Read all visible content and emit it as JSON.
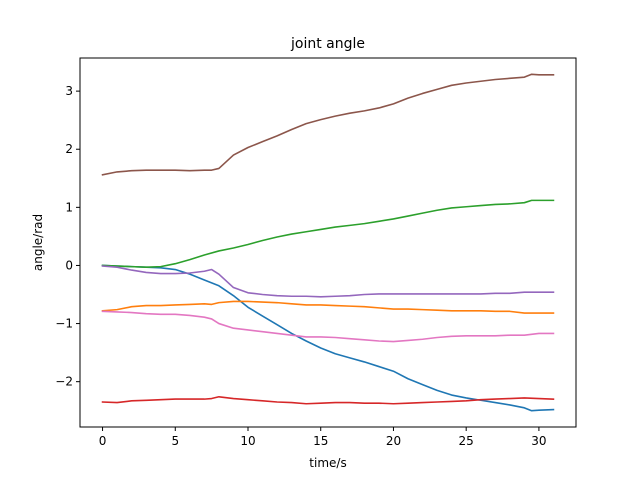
{
  "chart_data": {
    "type": "line",
    "title": "joint angle",
    "xlabel": "time/s",
    "ylabel": "angle/rad",
    "xlim": [
      -1.55,
      32.55
    ],
    "ylim": [
      -2.78,
      3.57
    ],
    "xticks": [
      0,
      5,
      10,
      15,
      20,
      25,
      30
    ],
    "yticks": [
      -2,
      -1,
      0,
      1,
      2,
      3
    ],
    "grid": false,
    "series": [
      {
        "color": "#1f77b4",
        "x": [
          0,
          1,
          2,
          3,
          4,
          5,
          6,
          7,
          8,
          9,
          10,
          11,
          12,
          13,
          14,
          15,
          16,
          17,
          18,
          19,
          20,
          21,
          22,
          23,
          24,
          25,
          26,
          27,
          28,
          29,
          29.5,
          30,
          31
        ],
        "y": [
          0.0,
          -0.01,
          -0.02,
          -0.03,
          -0.04,
          -0.07,
          -0.15,
          -0.25,
          -0.35,
          -0.52,
          -0.72,
          -0.87,
          -1.02,
          -1.17,
          -1.3,
          -1.42,
          -1.52,
          -1.59,
          -1.66,
          -1.74,
          -1.82,
          -1.95,
          -2.05,
          -2.15,
          -2.23,
          -2.28,
          -2.32,
          -2.36,
          -2.4,
          -2.45,
          -2.5,
          -2.49,
          -2.48
        ]
      },
      {
        "color": "#ff7f0e",
        "x": [
          0,
          1,
          2,
          3,
          4,
          5,
          6,
          7,
          7.5,
          8,
          9,
          10,
          11,
          12,
          13,
          14,
          15,
          16,
          17,
          18,
          19,
          20,
          21,
          22,
          23,
          24,
          25,
          26,
          27,
          28,
          29,
          30,
          31
        ],
        "y": [
          -0.78,
          -0.76,
          -0.71,
          -0.69,
          -0.69,
          -0.68,
          -0.67,
          -0.66,
          -0.67,
          -0.64,
          -0.62,
          -0.62,
          -0.63,
          -0.64,
          -0.66,
          -0.68,
          -0.68,
          -0.69,
          -0.7,
          -0.71,
          -0.73,
          -0.75,
          -0.75,
          -0.76,
          -0.77,
          -0.78,
          -0.78,
          -0.78,
          -0.79,
          -0.79,
          -0.82,
          -0.82,
          -0.82
        ]
      },
      {
        "color": "#2ca02c",
        "x": [
          0,
          1,
          2,
          3,
          4,
          5,
          6,
          7,
          8,
          9,
          10,
          11,
          12,
          13,
          14,
          15,
          16,
          17,
          18,
          19,
          20,
          21,
          22,
          23,
          24,
          25,
          26,
          27,
          28,
          29,
          29.5,
          30,
          31
        ],
        "y": [
          0.0,
          -0.01,
          -0.02,
          -0.03,
          -0.02,
          0.03,
          0.1,
          0.18,
          0.25,
          0.3,
          0.36,
          0.43,
          0.49,
          0.54,
          0.58,
          0.62,
          0.66,
          0.69,
          0.72,
          0.76,
          0.8,
          0.85,
          0.9,
          0.95,
          0.99,
          1.01,
          1.03,
          1.05,
          1.06,
          1.08,
          1.12,
          1.12,
          1.12
        ]
      },
      {
        "color": "#d62728",
        "x": [
          0,
          1,
          2,
          3,
          4,
          5,
          6,
          7,
          7.5,
          8,
          9,
          10,
          11,
          12,
          13,
          14,
          15,
          16,
          17,
          18,
          19,
          20,
          21,
          22,
          23,
          24,
          25,
          26,
          27,
          28,
          29,
          30,
          31
        ],
        "y": [
          -2.35,
          -2.36,
          -2.33,
          -2.32,
          -2.31,
          -2.3,
          -2.3,
          -2.3,
          -2.29,
          -2.26,
          -2.29,
          -2.31,
          -2.33,
          -2.35,
          -2.36,
          -2.38,
          -2.37,
          -2.36,
          -2.36,
          -2.37,
          -2.37,
          -2.38,
          -2.37,
          -2.36,
          -2.35,
          -2.34,
          -2.33,
          -2.31,
          -2.3,
          -2.29,
          -2.28,
          -2.29,
          -2.3
        ]
      },
      {
        "color": "#9467bd",
        "x": [
          0,
          1,
          2,
          3,
          4,
          5,
          6,
          7,
          7.5,
          8,
          9,
          10,
          11,
          12,
          13,
          14,
          15,
          16,
          17,
          18,
          19,
          20,
          21,
          22,
          23,
          24,
          25,
          26,
          27,
          28,
          29,
          30,
          31
        ],
        "y": [
          -0.01,
          -0.03,
          -0.08,
          -0.12,
          -0.14,
          -0.14,
          -0.13,
          -0.1,
          -0.07,
          -0.15,
          -0.38,
          -0.47,
          -0.5,
          -0.52,
          -0.53,
          -0.53,
          -0.54,
          -0.53,
          -0.52,
          -0.5,
          -0.49,
          -0.49,
          -0.49,
          -0.49,
          -0.49,
          -0.49,
          -0.49,
          -0.49,
          -0.48,
          -0.48,
          -0.46,
          -0.46,
          -0.46
        ]
      },
      {
        "color": "#8c564b",
        "x": [
          0,
          1,
          2,
          3,
          4,
          5,
          6,
          7,
          7.5,
          8,
          9,
          10,
          11,
          12,
          13,
          14,
          15,
          16,
          17,
          18,
          19,
          20,
          21,
          22,
          23,
          24,
          25,
          26,
          27,
          28,
          29,
          29.5,
          30,
          31
        ],
        "y": [
          1.56,
          1.61,
          1.63,
          1.64,
          1.64,
          1.64,
          1.63,
          1.64,
          1.64,
          1.67,
          1.9,
          2.03,
          2.13,
          2.23,
          2.34,
          2.44,
          2.51,
          2.57,
          2.62,
          2.66,
          2.71,
          2.78,
          2.88,
          2.96,
          3.03,
          3.1,
          3.14,
          3.17,
          3.2,
          3.22,
          3.24,
          3.29,
          3.28,
          3.28
        ]
      },
      {
        "color": "#e377c2",
        "x": [
          0,
          1,
          2,
          3,
          4,
          5,
          6,
          7,
          7.5,
          8,
          9,
          10,
          11,
          12,
          13,
          14,
          15,
          16,
          17,
          18,
          19,
          20,
          21,
          22,
          23,
          24,
          25,
          26,
          27,
          28,
          29,
          30,
          31
        ],
        "y": [
          -0.79,
          -0.8,
          -0.81,
          -0.83,
          -0.84,
          -0.84,
          -0.86,
          -0.89,
          -0.92,
          -1.0,
          -1.08,
          -1.11,
          -1.14,
          -1.17,
          -1.2,
          -1.23,
          -1.23,
          -1.24,
          -1.26,
          -1.28,
          -1.3,
          -1.31,
          -1.29,
          -1.27,
          -1.24,
          -1.22,
          -1.21,
          -1.21,
          -1.21,
          -1.2,
          -1.2,
          -1.17,
          -1.17
        ]
      }
    ]
  }
}
